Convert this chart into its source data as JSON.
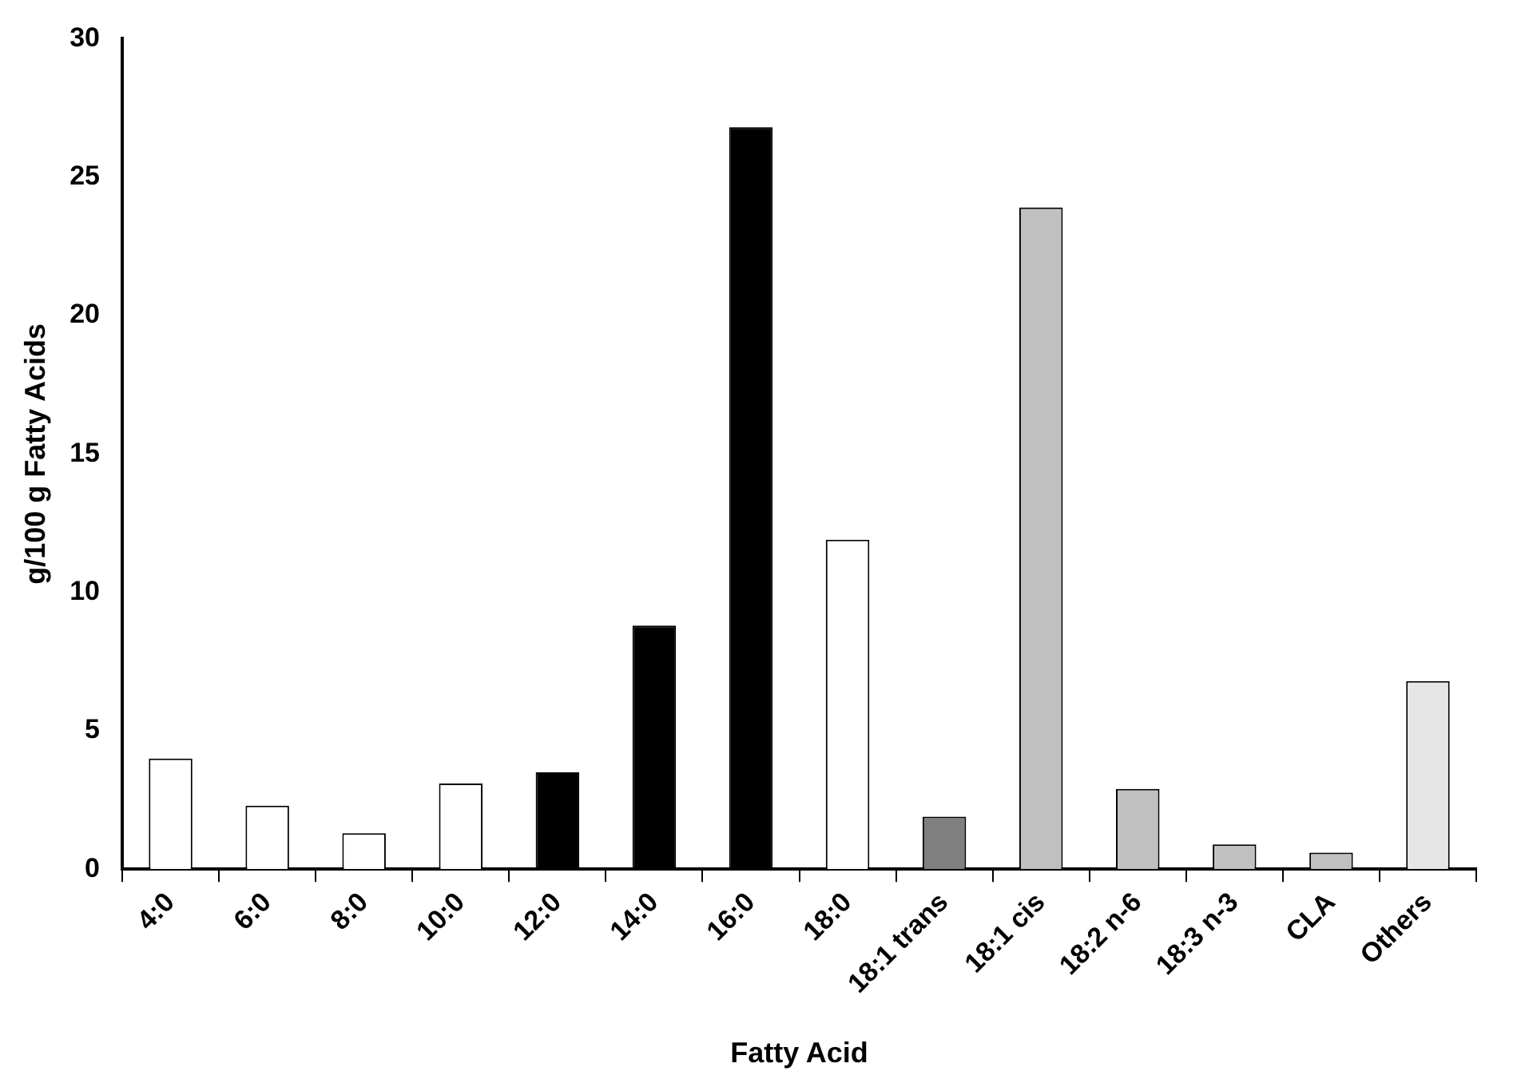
{
  "chart_data": {
    "type": "bar",
    "xlabel": "Fatty Acid",
    "ylabel": "g/100 g Fatty Acids",
    "categories": [
      "4:0",
      "6:0",
      "8:0",
      "10:0",
      "12:0",
      "14:0",
      "16:0",
      "18:0",
      "18:1 trans",
      "18:1 cis",
      "18:2 n-6",
      "18:3 n-3",
      "CLA",
      "Others"
    ],
    "values": [
      4.0,
      2.3,
      1.3,
      3.1,
      3.5,
      8.8,
      26.8,
      11.9,
      1.9,
      23.9,
      2.9,
      0.9,
      0.6,
      6.8
    ],
    "colors": [
      "#ffffff",
      "#ffffff",
      "#ffffff",
      "#ffffff",
      "#000000",
      "#000000",
      "#000000",
      "#ffffff",
      "#808080",
      "#c0c0c0",
      "#c0c0c0",
      "#c0c0c0",
      "#c0c0c0",
      "#e6e6e6"
    ],
    "ylim": [
      0,
      30
    ],
    "yticks": [
      0,
      5,
      10,
      15,
      20,
      25,
      30
    ],
    "grid": false,
    "legend": false
  }
}
